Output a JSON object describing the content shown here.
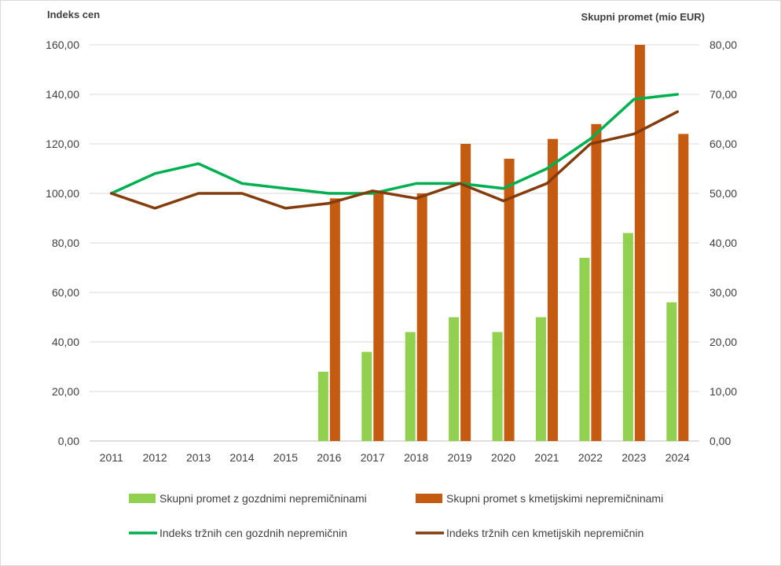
{
  "chart_data": {
    "type": "bar",
    "categories": [
      "2011",
      "2012",
      "2013",
      "2014",
      "2015",
      "2016",
      "2017",
      "2018",
      "2019",
      "2020",
      "2021",
      "2022",
      "2023",
      "2024"
    ],
    "left_axis": {
      "title": "Indeks cen",
      "ylim": [
        0,
        160
      ],
      "ticks": [
        "0,00",
        "20,00",
        "40,00",
        "60,00",
        "80,00",
        "100,00",
        "120,00",
        "140,00",
        "160,00"
      ]
    },
    "right_axis": {
      "title": "Skupni promet (mio EUR)",
      "ylim": [
        0,
        80
      ],
      "ticks": [
        "0,00",
        "10,00",
        "20,00",
        "30,00",
        "40,00",
        "50,00",
        "60,00",
        "70,00",
        "80,00"
      ]
    },
    "grid": true,
    "legend_position": "bottom",
    "series": [
      {
        "name": "Skupni promet z gozdnimi nepremičninami",
        "kind": "bar",
        "axis": "right",
        "color": "#92d050",
        "values": [
          null,
          null,
          null,
          null,
          null,
          14,
          18,
          22,
          25,
          22,
          25,
          37,
          42,
          28
        ]
      },
      {
        "name": "Skupni promet s kmetijskimi nepremičninami",
        "kind": "bar",
        "axis": "right",
        "color": "#c55a11",
        "values": [
          null,
          null,
          null,
          null,
          null,
          49,
          50,
          50,
          60,
          57,
          61,
          64,
          80,
          62
        ]
      },
      {
        "name": "Indeks tržnih cen gozdnih nepremičnin",
        "kind": "line",
        "axis": "left",
        "color": "#00b050",
        "values": [
          100,
          108,
          112,
          104,
          102,
          100,
          100,
          104,
          104,
          102,
          110,
          122,
          138,
          140
        ]
      },
      {
        "name": "Indeks tržnih cen kmetijskih nepremičnin",
        "kind": "line",
        "axis": "left",
        "color": "#843c0c",
        "values": [
          100,
          94,
          100,
          100,
          94,
          96,
          101,
          98,
          104,
          97,
          104,
          120,
          124,
          133
        ]
      }
    ]
  }
}
